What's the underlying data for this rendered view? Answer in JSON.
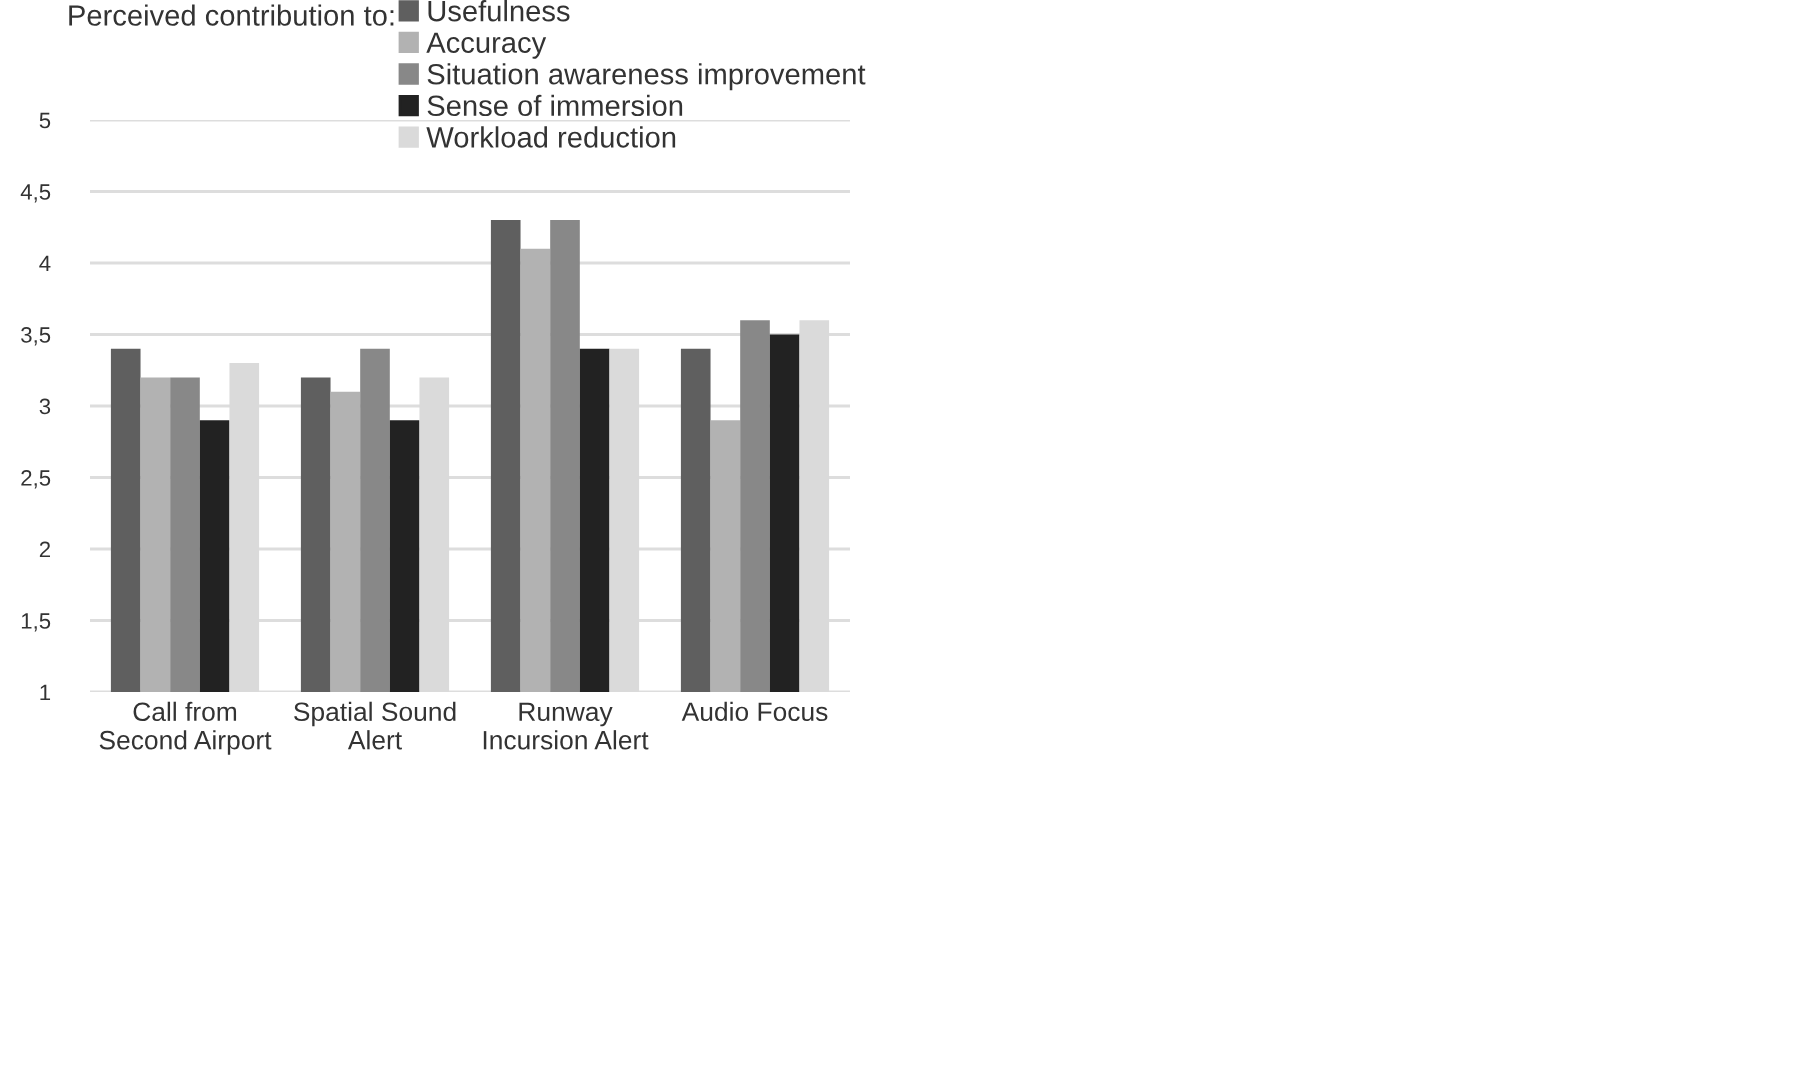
{
  "chart_data": {
    "type": "bar",
    "legend_title": "Perceived contribution to:",
    "categories": [
      "Call from\nSecond Airport",
      "Spatial Sound\nAlert",
      "Runway\nIncursion Alert",
      "Audio Focus"
    ],
    "series": [
      {
        "name": "Usefulness",
        "color": "#5f5f5f",
        "values": [
          3.4,
          3.2,
          4.3,
          3.4
        ]
      },
      {
        "name": "Accuracy",
        "color": "#b2b2b2",
        "values": [
          3.2,
          3.1,
          4.1,
          2.9
        ]
      },
      {
        "name": "Situation awareness improvement",
        "color": "#888888",
        "values": [
          3.2,
          3.4,
          4.3,
          3.6
        ]
      },
      {
        "name": "Sense of immersion",
        "color": "#222222",
        "values": [
          2.9,
          2.9,
          3.4,
          3.5
        ]
      },
      {
        "name": "Workload reduction",
        "color": "#dadada",
        "values": [
          3.3,
          3.2,
          3.4,
          3.6
        ]
      }
    ],
    "ylim": [
      1,
      5
    ],
    "yticks": [
      {
        "value": 1,
        "label": "1"
      },
      {
        "value": 1.5,
        "label": "1,5"
      },
      {
        "value": 2,
        "label": "2"
      },
      {
        "value": 2.5,
        "label": "2,5"
      },
      {
        "value": 3,
        "label": "3"
      },
      {
        "value": 3.5,
        "label": "3,5"
      },
      {
        "value": 4,
        "label": "4"
      },
      {
        "value": 4.5,
        "label": "4,5"
      },
      {
        "value": 5,
        "label": "5"
      }
    ],
    "grid": "y",
    "legend": "top"
  }
}
